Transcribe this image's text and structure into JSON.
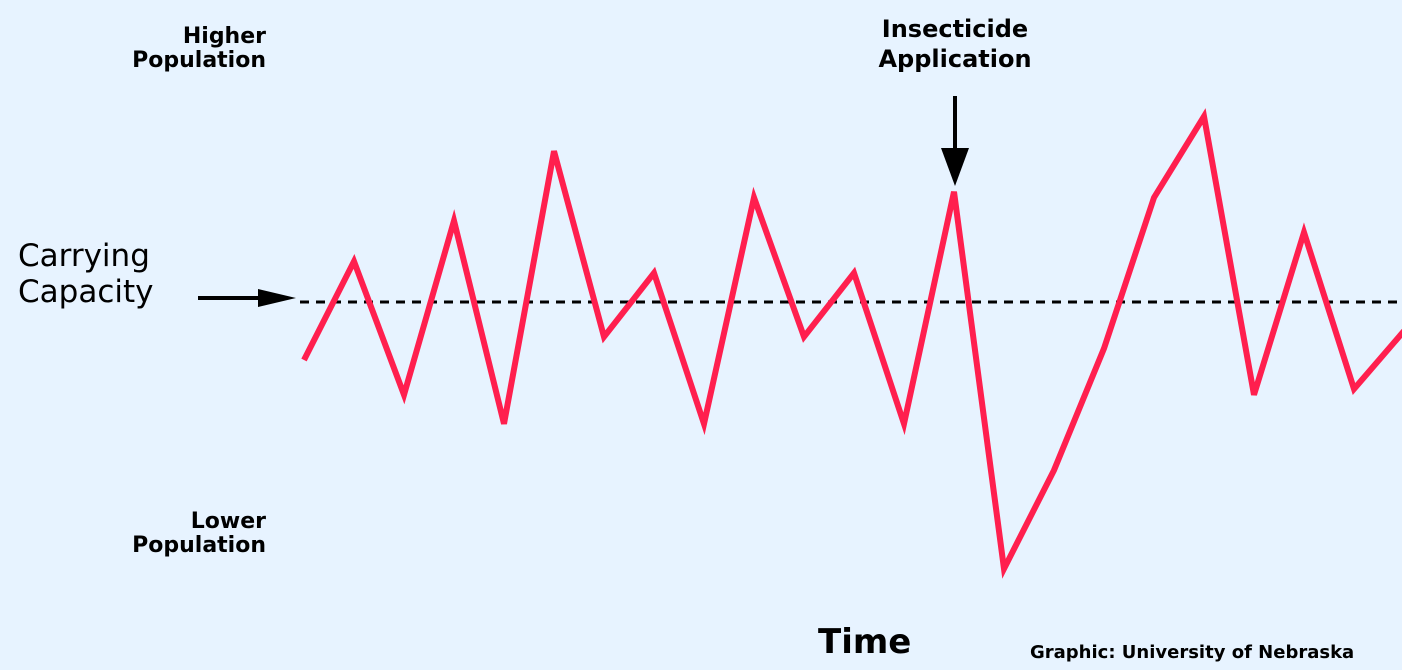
{
  "chart_data": {
    "type": "line",
    "title": "",
    "xlabel": "Time",
    "ylabel": "",
    "y_axis_labels": {
      "top": [
        "Higher",
        "Population"
      ],
      "bottom": [
        "Lower",
        "Population"
      ]
    },
    "reference_line": {
      "label": [
        "Carrying",
        "Capacity"
      ],
      "value": 0,
      "style": "dashed"
    },
    "annotation": {
      "text": [
        "Insecticide",
        "Application"
      ],
      "x": 13
    },
    "credit": "Graphic: University of Nebraska",
    "xlim": [
      0,
      22
    ],
    "ylim": [
      -5,
      4.5
    ],
    "series": [
      {
        "color": "#ff1f4e",
        "x": [
          0,
          1,
          2,
          3,
          4,
          5,
          6,
          7,
          8,
          9,
          10,
          11,
          12,
          13,
          14,
          15,
          16,
          17,
          18,
          19,
          20,
          21,
          22
        ],
        "y": [
          -1.0,
          0.7,
          -1.6,
          1.4,
          -2.1,
          2.6,
          -0.6,
          0.5,
          -2.1,
          1.8,
          -0.6,
          0.5,
          -2.1,
          1.9,
          -4.6,
          -2.9,
          -0.8,
          1.8,
          3.2,
          -1.6,
          1.2,
          -1.5,
          -0.5
        ]
      }
    ]
  }
}
